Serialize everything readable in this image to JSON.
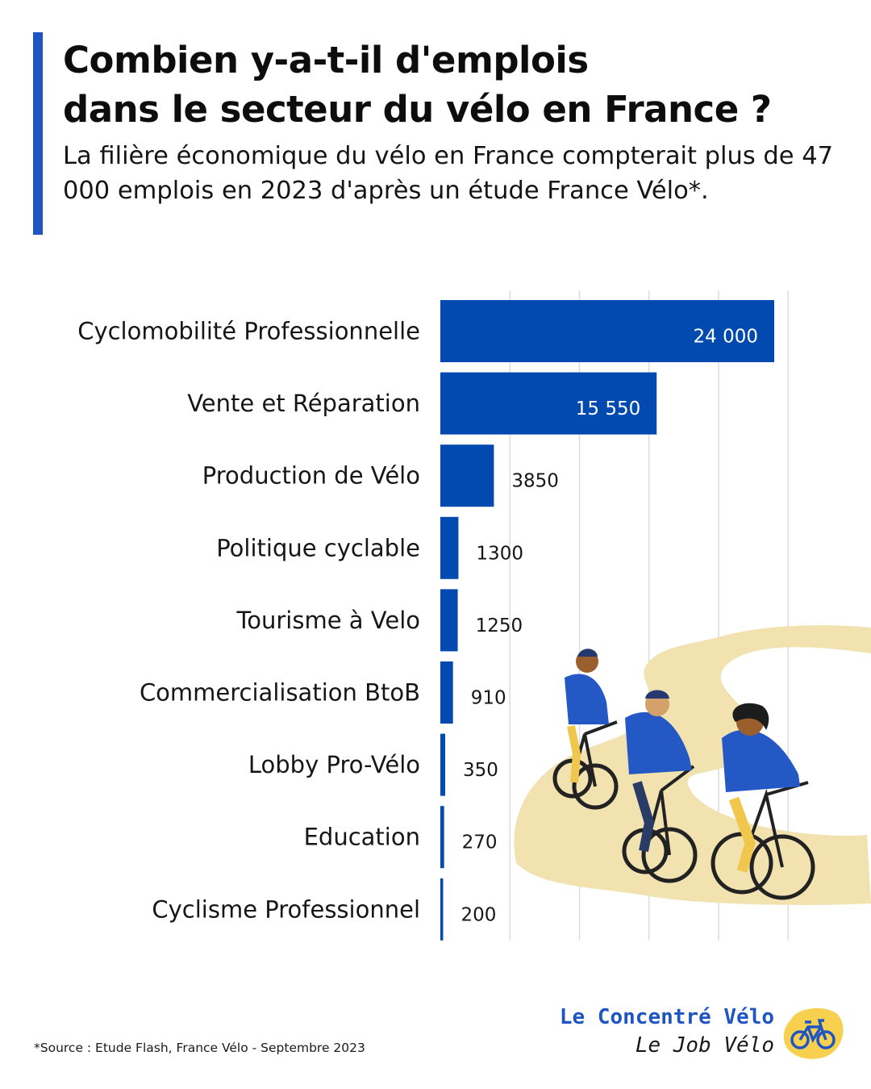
{
  "header": {
    "title_line1": "Combien y-a-t-il d'emplois",
    "title_line2": "dans le secteur du vélo en France ?",
    "subtitle": "La filière économique du vélo en France compterait plus de 47 000 emplois en 2023 d'après un étude France Vélo*."
  },
  "chart_data": {
    "type": "bar",
    "orientation": "horizontal",
    "categories": [
      "Cyclomobilité Professionnelle",
      "Vente et Réparation",
      "Production de Vélo",
      "Politique cyclable",
      "Tourisme à Velo",
      "Commercialisation BtoB",
      "Lobby Pro-Vélo",
      "Education",
      "Cyclisme Professionnel"
    ],
    "values": [
      24000,
      15550,
      3850,
      1300,
      1250,
      910,
      350,
      270,
      200
    ],
    "value_labels": [
      "24 000",
      "15 550",
      "3850",
      "1300",
      "1250",
      "910",
      "350",
      "270",
      "200"
    ],
    "xlim": [
      0,
      25000
    ],
    "x_gridlines": [
      5000,
      10000,
      15000,
      20000,
      25000
    ],
    "grid": true,
    "legend": "none",
    "bar_color": "#034ab0"
  },
  "footer": {
    "source": "*Source : Etude Flash, France Vélo - Septembre 2023",
    "brand_name": "Le Concentré Vélo",
    "brand_sub": "Le Job Vélo"
  },
  "colors": {
    "accent": "#1f55c2",
    "bar": "#034ab0",
    "path": "#f1e2b0",
    "logo": "#f7d04f"
  },
  "icons": {
    "illustration": "cyclists-illustration",
    "logo": "bicycle-icon"
  }
}
